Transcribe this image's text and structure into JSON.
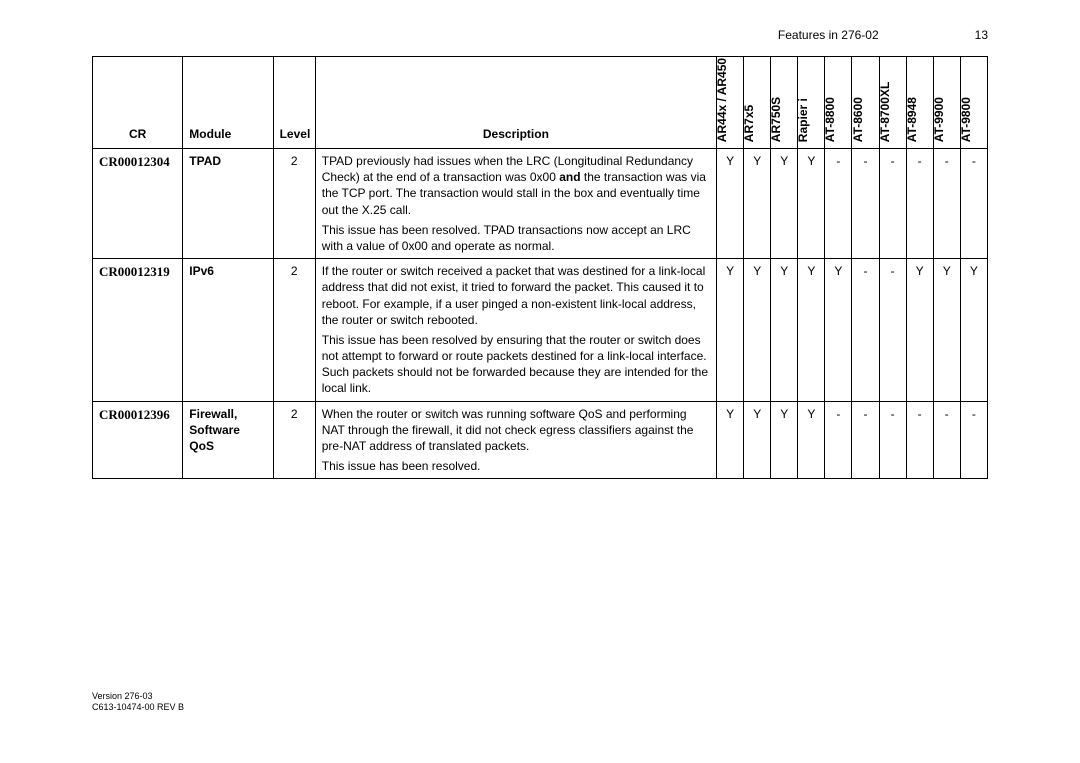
{
  "header": {
    "title": "Features in 276-02",
    "page": "13"
  },
  "columns": {
    "cr": "CR",
    "module": "Module",
    "level": "Level",
    "description": "Description",
    "platforms": [
      "AR44x / AR450",
      "AR7x5",
      "AR750S",
      "Rapier i",
      "AT-8800",
      "AT-8600",
      "AT-8700XL",
      "AT-8948",
      "AT-9900",
      "AT-9800"
    ]
  },
  "rows": [
    {
      "cr": "CR00012304",
      "module": "TPAD",
      "level": "2",
      "desc_p1a": "TPAD previously had issues when the LRC (Longitudinal Redundancy Check) at the end of a transaction was 0x00 ",
      "desc_p1b": "and",
      "desc_p1c": " the transaction was via the TCP port. The transaction would stall in the box and eventually time out the X.25 call.",
      "desc_p2": "This issue has been resolved. TPAD transactions now accept an LRC with a value of 0x00 and operate as normal.",
      "platforms": [
        "Y",
        "Y",
        "Y",
        "Y",
        "-",
        "-",
        "-",
        "-",
        "-",
        "-"
      ]
    },
    {
      "cr": "CR00012319",
      "module": "IPv6",
      "level": "2",
      "desc_p1": "If the router or switch received a packet that was destined for a link-local address that did not exist, it tried to forward the packet. This caused it to reboot. For example, if a user pinged a non-existent link-local address, the router or switch rebooted.",
      "desc_p2": "This issue has been resolved by ensuring that the router or switch does not attempt to forward or route packets destined for a link-local interface. Such packets should not be forwarded because they are intended for the local link.",
      "platforms": [
        "Y",
        "Y",
        "Y",
        "Y",
        "Y",
        "-",
        "-",
        "Y",
        "Y",
        "Y"
      ]
    },
    {
      "cr": "CR00012396",
      "module": "Firewall, Software QoS",
      "level": "2",
      "desc_p1": "When the router or switch was running software QoS and performing NAT through the firewall, it did not check egress classifiers against the pre-NAT address of translated packets.",
      "desc_p2": "This issue has been resolved.",
      "platforms": [
        "Y",
        "Y",
        "Y",
        "Y",
        "-",
        "-",
        "-",
        "-",
        "-",
        "-"
      ]
    }
  ],
  "footer": {
    "line1": "Version 276-03",
    "line2": "C613-10474-00 REV B"
  }
}
